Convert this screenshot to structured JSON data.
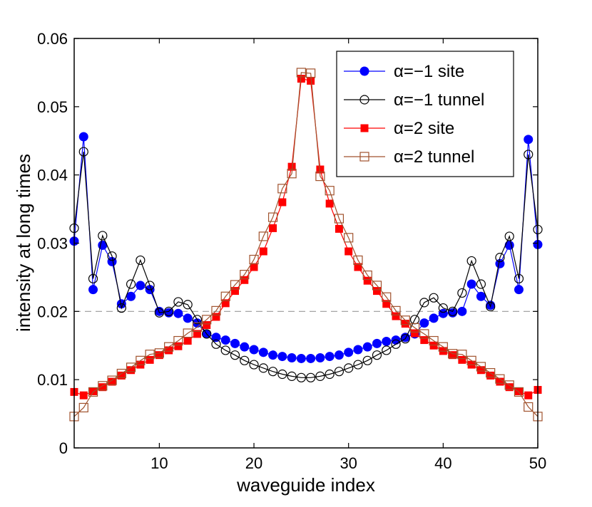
{
  "chart_data": {
    "type": "line",
    "title": "",
    "xlabel": "waveguide index",
    "ylabel": "intensity at long times",
    "xlim": [
      1,
      50
    ],
    "ylim": [
      0,
      0.06
    ],
    "xticks": [
      10,
      20,
      30,
      40,
      50
    ],
    "yticks": [
      0,
      0.01,
      0.02,
      0.03,
      0.04,
      0.05,
      0.06
    ],
    "xtick_labels": [
      "10",
      "20",
      "30",
      "40",
      "50"
    ],
    "ytick_labels": [
      "0",
      "0.01",
      "0.02",
      "0.03",
      "0.04",
      "0.05",
      "0.06"
    ],
    "grid": false,
    "legend_position": "top-right",
    "reference_line": {
      "y": 0.02,
      "style": "dashed",
      "color": "#999999"
    },
    "x": [
      1,
      2,
      3,
      4,
      5,
      6,
      7,
      8,
      9,
      10,
      11,
      12,
      13,
      14,
      15,
      16,
      17,
      18,
      19,
      20,
      21,
      22,
      23,
      24,
      25,
      26,
      27,
      28,
      29,
      30,
      31,
      32,
      33,
      34,
      35,
      36,
      37,
      38,
      39,
      40,
      41,
      42,
      43,
      44,
      45,
      46,
      47,
      48,
      49,
      50
    ],
    "series": [
      {
        "name": "α=−1 site",
        "color": "#0000ff",
        "marker": "filled-circle",
        "values": [
          0.0303,
          0.0456,
          0.0232,
          0.0297,
          0.0273,
          0.0211,
          0.0222,
          0.0238,
          0.0232,
          0.02,
          0.0198,
          0.0197,
          0.019,
          0.0183,
          0.0167,
          0.0162,
          0.0158,
          0.0153,
          0.0148,
          0.0144,
          0.014,
          0.0136,
          0.0134,
          0.0132,
          0.0131,
          0.0131,
          0.0132,
          0.0134,
          0.0136,
          0.014,
          0.0144,
          0.0148,
          0.0153,
          0.0156,
          0.0158,
          0.0162,
          0.0167,
          0.0183,
          0.019,
          0.0197,
          0.0198,
          0.02,
          0.024,
          0.0222,
          0.0209,
          0.027,
          0.0297,
          0.0232,
          0.0452,
          0.0298
        ]
      },
      {
        "name": "α=−1 tunnel",
        "color": "#000000",
        "marker": "open-circle",
        "values": [
          0.0322,
          0.0434,
          0.0248,
          0.0311,
          0.0281,
          0.0205,
          0.024,
          0.0275,
          0.0238,
          0.0198,
          0.02,
          0.0214,
          0.021,
          0.0188,
          0.0167,
          0.0152,
          0.0143,
          0.0136,
          0.0128,
          0.0122,
          0.0117,
          0.0112,
          0.0108,
          0.0105,
          0.0103,
          0.0103,
          0.0105,
          0.0108,
          0.0112,
          0.0117,
          0.0122,
          0.0128,
          0.0136,
          0.0143,
          0.0152,
          0.016,
          0.0188,
          0.0213,
          0.022,
          0.0205,
          0.02,
          0.0227,
          0.0274,
          0.024,
          0.0207,
          0.0279,
          0.031,
          0.0248,
          0.043,
          0.032
        ]
      },
      {
        "name": "α=2 site",
        "color": "#ff0000",
        "marker": "filled-square",
        "values": [
          0.0082,
          0.0077,
          0.0083,
          0.0089,
          0.0097,
          0.0106,
          0.0114,
          0.0122,
          0.0129,
          0.0136,
          0.0143,
          0.0149,
          0.0157,
          0.0167,
          0.018,
          0.0192,
          0.0212,
          0.023,
          0.0246,
          0.0265,
          0.0288,
          0.0322,
          0.036,
          0.0412,
          0.0541,
          0.0538,
          0.0408,
          0.0358,
          0.0321,
          0.0288,
          0.0265,
          0.0245,
          0.023,
          0.0211,
          0.0193,
          0.0182,
          0.0168,
          0.0158,
          0.015,
          0.0142,
          0.0136,
          0.0129,
          0.0122,
          0.0114,
          0.0106,
          0.0097,
          0.0089,
          0.0083,
          0.0077,
          0.0085
        ]
      },
      {
        "name": "α=2 tunnel",
        "color": "#a0522d",
        "marker": "open-square",
        "values": [
          0.0046,
          0.0059,
          0.0082,
          0.0091,
          0.0099,
          0.0109,
          0.0118,
          0.0128,
          0.0137,
          0.0139,
          0.0148,
          0.0157,
          0.0168,
          0.0177,
          0.0188,
          0.0201,
          0.0222,
          0.0239,
          0.0254,
          0.0276,
          0.031,
          0.0338,
          0.038,
          0.0402,
          0.055,
          0.0549,
          0.0398,
          0.0377,
          0.0336,
          0.0308,
          0.0275,
          0.0253,
          0.0238,
          0.0221,
          0.0201,
          0.0187,
          0.0176,
          0.0167,
          0.0157,
          0.0148,
          0.0138,
          0.0137,
          0.0128,
          0.0119,
          0.011,
          0.0101,
          0.0092,
          0.0082,
          0.006,
          0.0046
        ]
      }
    ]
  }
}
